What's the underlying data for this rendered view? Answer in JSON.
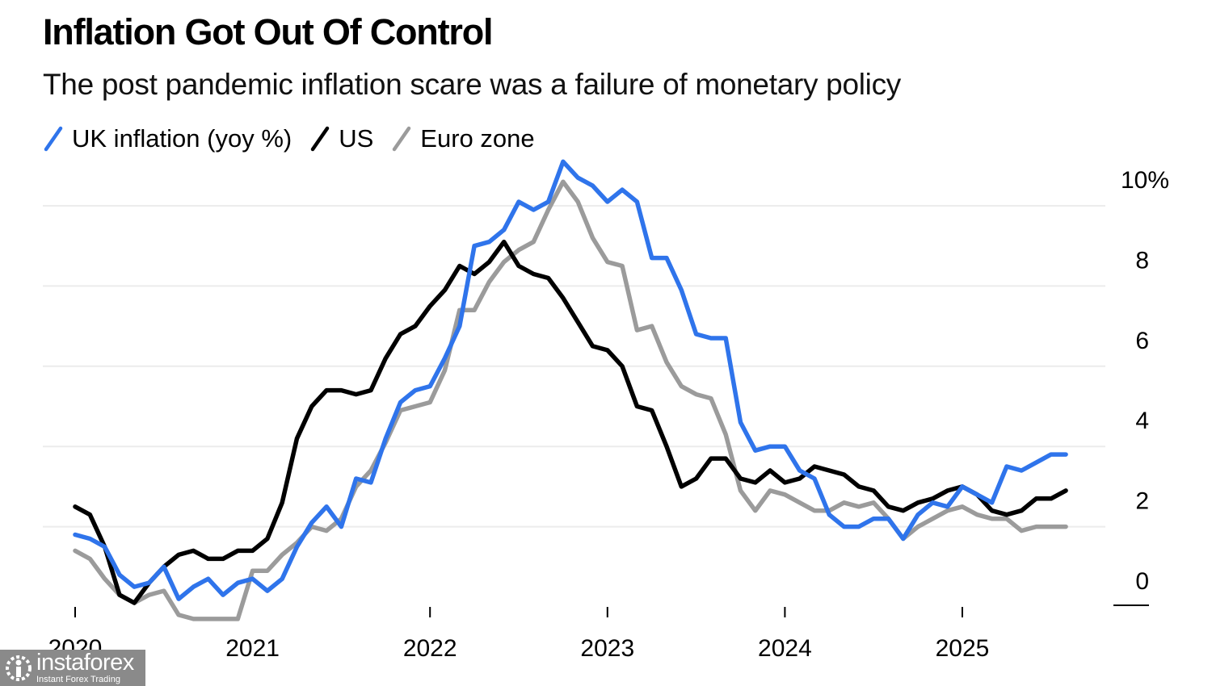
{
  "header": {
    "title": "Inflation Got Out Of Control",
    "subtitle": "The post pandemic inflation scare was a failure of monetary policy"
  },
  "watermark": {
    "brand": "instaforex",
    "tagline": "Instant Forex Trading"
  },
  "chart_data": {
    "type": "line",
    "title": "Inflation Got Out Of Control",
    "subtitle": "The post pandemic inflation scare was a failure of monetary policy",
    "xlabel": "",
    "ylabel": "",
    "x_start": "2020-01",
    "x_end": "2025-08",
    "frequency": "monthly",
    "x_ticks": [
      "2020",
      "2021",
      "2022",
      "2023",
      "2024",
      "2025"
    ],
    "y_ticks": [
      "0",
      "2",
      "4",
      "6",
      "8",
      "10%"
    ],
    "ylim": [
      0,
      10
    ],
    "grid": true,
    "y_axis_position": "right",
    "legend_position": "top-left",
    "series": [
      {
        "name": "UK inflation (yoy %)",
        "color": "#2f74eb",
        "values": [
          1.8,
          1.7,
          1.5,
          0.8,
          0.5,
          0.6,
          1.0,
          0.2,
          0.5,
          0.7,
          0.3,
          0.6,
          0.7,
          0.4,
          0.7,
          1.5,
          2.1,
          2.5,
          2.0,
          3.2,
          3.1,
          4.2,
          5.1,
          5.4,
          5.5,
          6.2,
          7.0,
          9.0,
          9.1,
          9.4,
          10.1,
          9.9,
          10.1,
          11.1,
          10.7,
          10.5,
          10.1,
          10.4,
          10.1,
          8.7,
          8.7,
          7.9,
          6.8,
          6.7,
          6.7,
          4.6,
          3.9,
          4.0,
          4.0,
          3.4,
          3.2,
          2.3,
          2.0,
          2.0,
          2.2,
          2.2,
          1.7,
          2.3,
          2.6,
          2.5,
          3.0,
          2.8,
          2.6,
          3.5,
          3.4,
          3.6,
          3.8,
          3.8
        ]
      },
      {
        "name": "US",
        "color": "#000000",
        "values": [
          2.5,
          2.3,
          1.5,
          0.3,
          0.1,
          0.6,
          1.0,
          1.3,
          1.4,
          1.2,
          1.2,
          1.4,
          1.4,
          1.7,
          2.6,
          4.2,
          5.0,
          5.4,
          5.4,
          5.3,
          5.4,
          6.2,
          6.8,
          7.0,
          7.5,
          7.9,
          8.5,
          8.3,
          8.6,
          9.1,
          8.5,
          8.3,
          8.2,
          7.7,
          7.1,
          6.5,
          6.4,
          6.0,
          5.0,
          4.9,
          4.0,
          3.0,
          3.2,
          3.7,
          3.7,
          3.2,
          3.1,
          3.4,
          3.1,
          3.2,
          3.5,
          3.4,
          3.3,
          3.0,
          2.9,
          2.5,
          2.4,
          2.6,
          2.7,
          2.9,
          3.0,
          2.8,
          2.4,
          2.3,
          2.4,
          2.7,
          2.7,
          2.9
        ]
      },
      {
        "name": "Euro zone",
        "color": "#9b9b9b",
        "values": [
          1.4,
          1.2,
          0.7,
          0.3,
          0.1,
          0.3,
          0.4,
          -0.2,
          -0.3,
          -0.3,
          -0.3,
          -0.3,
          0.9,
          0.9,
          1.3,
          1.6,
          2.0,
          1.9,
          2.2,
          3.0,
          3.4,
          4.1,
          4.9,
          5.0,
          5.1,
          5.9,
          7.4,
          7.4,
          8.1,
          8.6,
          8.9,
          9.1,
          9.9,
          10.6,
          10.1,
          9.2,
          8.6,
          8.5,
          6.9,
          7.0,
          6.1,
          5.5,
          5.3,
          5.2,
          4.3,
          2.9,
          2.4,
          2.9,
          2.8,
          2.6,
          2.4,
          2.4,
          2.6,
          2.5,
          2.6,
          2.2,
          1.7,
          2.0,
          2.2,
          2.4,
          2.5,
          2.3,
          2.2,
          2.2,
          1.9,
          2.0,
          2.0,
          2.0
        ]
      }
    ]
  }
}
